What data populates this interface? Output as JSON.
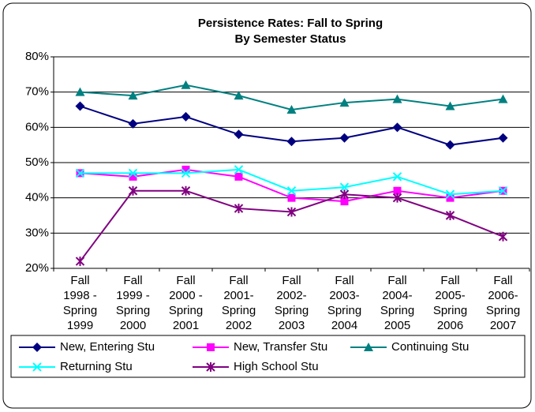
{
  "chart_data": {
    "type": "line",
    "title": [
      "Persistence Rates:  Fall to Spring",
      "By Semester Status"
    ],
    "categories": [
      [
        "Fall",
        "1998 -",
        "Spring",
        "1999"
      ],
      [
        "Fall",
        "1999 -",
        "Spring",
        "2000"
      ],
      [
        "Fall",
        "2000 -",
        "Spring",
        "2001"
      ],
      [
        "Fall",
        "2001-",
        "Spring",
        "2002"
      ],
      [
        "Fall",
        "2002-",
        "Spring",
        "2003"
      ],
      [
        "Fall",
        "2003-",
        "Spring",
        "2004"
      ],
      [
        "Fall",
        "2004-",
        "Spring",
        "2005"
      ],
      [
        "Fall",
        "2005-",
        "Spring",
        "2006"
      ],
      [
        "Fall",
        "2006-",
        "Spring",
        "2007"
      ]
    ],
    "series": [
      {
        "name": "New, Entering Stu",
        "color": "#000080",
        "marker": "diamond",
        "values": [
          66,
          61,
          63,
          58,
          56,
          57,
          60,
          55,
          57
        ]
      },
      {
        "name": "New, Transfer Stu",
        "color": "#ff00ff",
        "marker": "square",
        "values": [
          47,
          46,
          48,
          46,
          40,
          39,
          42,
          40,
          42
        ]
      },
      {
        "name": "Continuing Stu",
        "color": "#008080",
        "marker": "triangle",
        "values": [
          70,
          69,
          72,
          69,
          65,
          67,
          68,
          66,
          68
        ]
      },
      {
        "name": "Returning Stu",
        "color": "#00ffff",
        "marker": "x",
        "values": [
          47,
          47,
          47,
          48,
          42,
          43,
          46,
          41,
          42
        ]
      },
      {
        "name": "High School Stu",
        "color": "#800080",
        "marker": "asterisk",
        "values": [
          22,
          42,
          42,
          37,
          36,
          41,
          40,
          35,
          29
        ]
      }
    ],
    "ylim": [
      20,
      80
    ],
    "yticks": [
      {
        "value": 20,
        "label": "20%"
      },
      {
        "value": 30,
        "label": "30%"
      },
      {
        "value": 40,
        "label": "40%"
      },
      {
        "value": 50,
        "label": "50%"
      },
      {
        "value": 60,
        "label": "60%"
      },
      {
        "value": 70,
        "label": "70%"
      },
      {
        "value": 80,
        "label": "80%"
      }
    ],
    "grid": true
  }
}
